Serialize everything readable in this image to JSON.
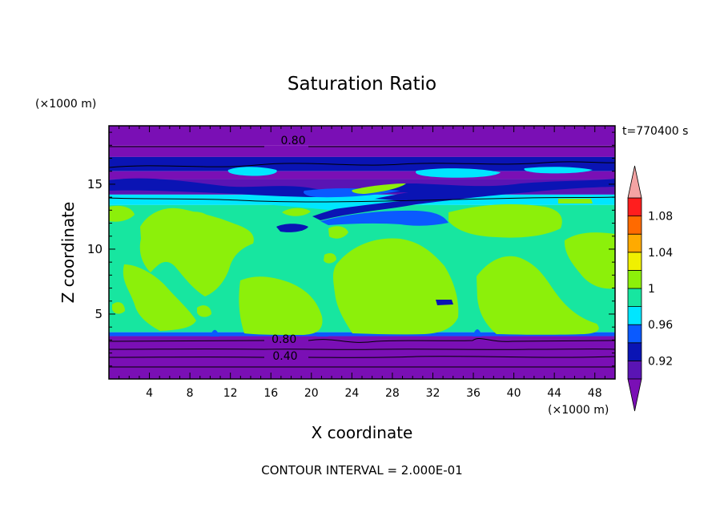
{
  "chart_data": {
    "type": "heatmap",
    "title": "Saturation Ratio",
    "xlabel": "X coordinate",
    "ylabel": "Z coordinate",
    "x_unit": "(×1000 m)",
    "y_unit": "(×1000 m)",
    "time_label": "t=770400 s",
    "footer": "CONTOUR INTERVAL = 2.000E-01",
    "xlim": [
      0,
      50
    ],
    "ylim": [
      0,
      19.5
    ],
    "x_ticks": [
      4,
      8,
      12,
      16,
      20,
      24,
      28,
      32,
      36,
      40,
      44,
      48
    ],
    "y_ticks": [
      5,
      10,
      15
    ],
    "colorbar": {
      "levels": [
        0.9,
        0.92,
        0.94,
        0.96,
        0.98,
        1.0,
        1.02,
        1.04,
        1.06,
        1.08,
        1.1
      ],
      "tick_labels": [
        {
          "value": 0.92,
          "label": "0.92"
        },
        {
          "value": 0.96,
          "label": "0.96"
        },
        {
          "value": 1.0,
          "label": "1"
        },
        {
          "value": 1.04,
          "label": "1.04"
        },
        {
          "value": 1.08,
          "label": "1.08"
        }
      ],
      "under_color": "#7a0fb5",
      "over_color": "#f4a3a3",
      "colors": [
        "#5a14b4",
        "#0a14b4",
        "#0a5aff",
        "#00e6ff",
        "#17e6a0",
        "#8cf00a",
        "#f0f000",
        "#ffaa00",
        "#ff6a00",
        "#ff1e1e"
      ]
    },
    "contour_labels": [
      {
        "text": "0.80",
        "x": 18.2,
        "z": 18.4
      },
      {
        "text": "0.80",
        "x": 17.3,
        "z": 3.1
      },
      {
        "text": "0.40",
        "x": 17.4,
        "z": 1.8
      }
    ],
    "regions": [
      {
        "z_from": 18.0,
        "z_to": 19.5,
        "value": 0.8
      },
      {
        "z_from": 17.1,
        "z_to": 18.0,
        "value": 0.86
      },
      {
        "z_from": 16.0,
        "z_to": 17.1,
        "value": 0.93
      },
      {
        "z_from": 15.4,
        "z_to": 16.0,
        "value": 0.89
      },
      {
        "z_from": 14.2,
        "z_to": 15.4,
        "value": 0.91
      },
      {
        "z_from": 13.4,
        "z_to": 14.2,
        "value": 0.97
      },
      {
        "z_from": 3.6,
        "z_to": 13.4,
        "value": 0.99
      },
      {
        "z_from": 3.3,
        "z_to": 3.6,
        "value": 0.94
      },
      {
        "z_from": 0.0,
        "z_to": 3.3,
        "value": 0.6
      }
    ]
  }
}
